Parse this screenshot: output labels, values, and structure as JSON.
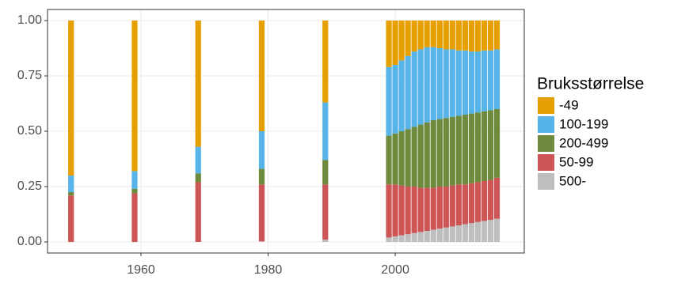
{
  "chart_data": {
    "type": "bar",
    "stacked": true,
    "legend_title": "Bruksstørrelse",
    "legend_position": "right",
    "x": [
      1949,
      1959,
      1969,
      1979,
      1989,
      1999,
      2000,
      2001,
      2002,
      2003,
      2004,
      2005,
      2006,
      2007,
      2008,
      2009,
      2010,
      2011,
      2012,
      2013,
      2014,
      2015,
      2016
    ],
    "series": [
      {
        "name": "500-",
        "color": "#bebebe",
        "values": [
          0,
          0,
          0,
          0.003,
          0.01,
          0.02,
          0.025,
          0.03,
          0.035,
          0.04,
          0.045,
          0.05,
          0.055,
          0.06,
          0.065,
          0.07,
          0.075,
          0.08,
          0.085,
          0.09,
          0.095,
          0.1,
          0.105
        ]
      },
      {
        "name": "50-99",
        "color": "#cd5555",
        "values": [
          0.21,
          0.22,
          0.27,
          0.257,
          0.25,
          0.24,
          0.235,
          0.225,
          0.215,
          0.21,
          0.2,
          0.195,
          0.19,
          0.19,
          0.185,
          0.185,
          0.185,
          0.18,
          0.18,
          0.18,
          0.18,
          0.18,
          0.185
        ]
      },
      {
        "name": "200-499",
        "color": "#6e8b3d",
        "values": [
          0.015,
          0.02,
          0.04,
          0.07,
          0.11,
          0.22,
          0.23,
          0.245,
          0.26,
          0.27,
          0.285,
          0.295,
          0.305,
          0.305,
          0.31,
          0.31,
          0.31,
          0.315,
          0.315,
          0.315,
          0.315,
          0.315,
          0.31
        ]
      },
      {
        "name": "100-199",
        "color": "#56b4e9",
        "values": [
          0.075,
          0.08,
          0.12,
          0.17,
          0.26,
          0.31,
          0.31,
          0.32,
          0.33,
          0.34,
          0.34,
          0.34,
          0.33,
          0.32,
          0.31,
          0.305,
          0.295,
          0.29,
          0.28,
          0.275,
          0.275,
          0.27,
          0.27
        ]
      },
      {
        "name": "-49",
        "color": "#e69f00",
        "values": [
          0.7,
          0.68,
          0.57,
          0.5,
          0.37,
          0.21,
          0.2,
          0.18,
          0.16,
          0.14,
          0.13,
          0.12,
          0.12,
          0.125,
          0.13,
          0.13,
          0.135,
          0.135,
          0.14,
          0.14,
          0.135,
          0.135,
          0.13
        ]
      }
    ],
    "xlim": [
      1945.3,
      2020.3
    ],
    "xticks": [
      1960,
      1980,
      2000
    ],
    "ylim": [
      -0.05,
      1.05
    ],
    "yticks": [
      {
        "value": 0,
        "label": "0.00"
      },
      {
        "value": 0.25,
        "label": "0.25"
      },
      {
        "value": 0.5,
        "label": "0.50"
      },
      {
        "value": 0.75,
        "label": "0.75"
      },
      {
        "value": 1,
        "label": "1.00"
      }
    ],
    "grid": true
  }
}
